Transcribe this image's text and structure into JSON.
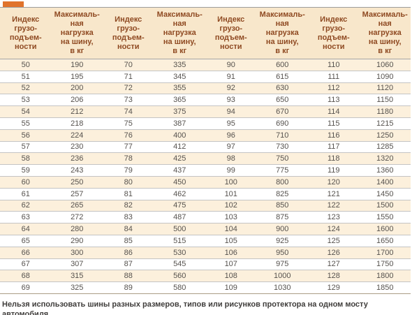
{
  "colors": {
    "accent": "#e0732c",
    "header_bg": "#f8e7cb",
    "header_text": "#8f4a22",
    "row_cream": "#fcf0dc",
    "cell_text": "#56524e",
    "line": "#c4c4c4"
  },
  "table": {
    "header_columns": [
      {
        "lines": [
          "Индекс",
          "грузо-",
          "подъем-",
          "ности"
        ]
      },
      {
        "lines": [
          "Максималь-",
          "ная",
          "нагрузка",
          "на шину,",
          "в кг"
        ]
      },
      {
        "lines": [
          "Индекс",
          "грузо-",
          "подъем-",
          "ности"
        ]
      },
      {
        "lines": [
          "Максималь-",
          "ная",
          "нагрузка",
          "на шину,",
          "в кг"
        ]
      },
      {
        "lines": [
          "Индекс",
          "грузо-",
          "подъем-",
          "ности"
        ]
      },
      {
        "lines": [
          "Максималь-",
          "ная",
          "нагрузка",
          "на шину,",
          "в кг"
        ]
      },
      {
        "lines": [
          "Индекс",
          "грузо-",
          "подъем-",
          "ности"
        ]
      },
      {
        "lines": [
          "Максималь-",
          "ная",
          "нагрузка",
          "на шину,",
          "в кг"
        ]
      }
    ],
    "rows": [
      [
        "50",
        "190",
        "70",
        "335",
        "90",
        "600",
        "110",
        "1060"
      ],
      [
        "51",
        "195",
        "71",
        "345",
        "91",
        "615",
        "111",
        "1090"
      ],
      [
        "52",
        "200",
        "72",
        "355",
        "92",
        "630",
        "112",
        "1120"
      ],
      [
        "53",
        "206",
        "73",
        "365",
        "93",
        "650",
        "113",
        "1150"
      ],
      [
        "54",
        "212",
        "74",
        "375",
        "94",
        "670",
        "114",
        "1180"
      ],
      [
        "55",
        "218",
        "75",
        "387",
        "95",
        "690",
        "115",
        "1215"
      ],
      [
        "56",
        "224",
        "76",
        "400",
        "96",
        "710",
        "116",
        "1250"
      ],
      [
        "57",
        "230",
        "77",
        "412",
        "97",
        "730",
        "117",
        "1285"
      ],
      [
        "58",
        "236",
        "78",
        "425",
        "98",
        "750",
        "118",
        "1320"
      ],
      [
        "59",
        "243",
        "79",
        "437",
        "99",
        "775",
        "119",
        "1360"
      ],
      [
        "60",
        "250",
        "80",
        "450",
        "100",
        "800",
        "120",
        "1400"
      ],
      [
        "61",
        "257",
        "81",
        "462",
        "101",
        "825",
        "121",
        "1450"
      ],
      [
        "62",
        "265",
        "82",
        "475",
        "102",
        "850",
        "122",
        "1500"
      ],
      [
        "63",
        "272",
        "83",
        "487",
        "103",
        "875",
        "123",
        "1550"
      ],
      [
        "64",
        "280",
        "84",
        "500",
        "104",
        "900",
        "124",
        "1600"
      ],
      [
        "65",
        "290",
        "85",
        "515",
        "105",
        "925",
        "125",
        "1650"
      ],
      [
        "66",
        "300",
        "86",
        "530",
        "106",
        "950",
        "126",
        "1700"
      ],
      [
        "67",
        "307",
        "87",
        "545",
        "107",
        "975",
        "127",
        "1750"
      ],
      [
        "68",
        "315",
        "88",
        "560",
        "108",
        "1000",
        "128",
        "1800"
      ],
      [
        "69",
        "325",
        "89",
        "580",
        "109",
        "1030",
        "129",
        "1850"
      ]
    ]
  },
  "note": "Нельзя использовать шины разных размеров, типов или рисунков протектора на одном мосту автомобиля."
}
